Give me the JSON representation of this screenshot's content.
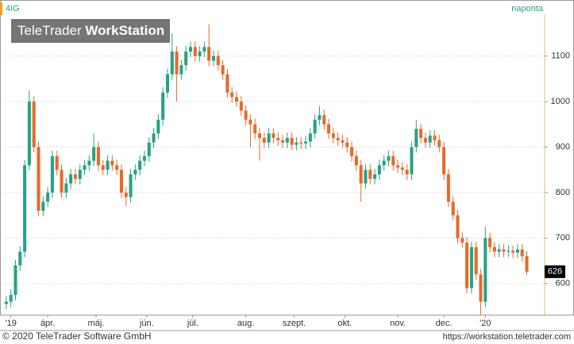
{
  "chart_data": {
    "type": "candlestick",
    "symbol": "4IG",
    "interval": "naponta",
    "logo": {
      "part1": "TeleTrader",
      "part2": "WorkStation"
    },
    "footer_left": "© 2020 TeleTrader Software GmbH",
    "footer_right": "https://workstation.teletrader.com",
    "up_color": "#26a383",
    "down_color": "#e8692a",
    "grid": true,
    "ylim": [
      535,
      1192
    ],
    "yticks": [
      600,
      700,
      800,
      900,
      1000,
      1100
    ],
    "xlim": [
      -0.5,
      116.7
    ],
    "xticks": [
      {
        "value": 1,
        "label": "'19"
      },
      {
        "value": 9,
        "label": "ápr."
      },
      {
        "value": 19.5,
        "label": "máj."
      },
      {
        "value": 30.5,
        "label": "jún."
      },
      {
        "value": 40.5,
        "label": "júl."
      },
      {
        "value": 52,
        "label": "aug."
      },
      {
        "value": 62.5,
        "label": "szept."
      },
      {
        "value": 73.5,
        "label": "okt."
      },
      {
        "value": 85,
        "label": "nov."
      },
      {
        "value": 95,
        "label": "dec."
      },
      {
        "value": 104,
        "label": "'20"
      }
    ],
    "last_value": 626,
    "candles": [
      [
        555,
        572,
        543,
        560
      ],
      [
        560,
        587,
        548,
        575
      ],
      [
        575,
        652,
        563,
        640
      ],
      [
        640,
        682,
        628,
        670
      ],
      [
        670,
        872,
        658,
        860
      ],
      [
        860,
        1025,
        848,
        1000
      ],
      [
        1000,
        1012,
        888,
        900
      ],
      [
        900,
        912,
        748,
        760
      ],
      [
        760,
        792,
        748,
        780
      ],
      [
        780,
        812,
        768,
        800
      ],
      [
        800,
        892,
        788,
        880
      ],
      [
        880,
        892,
        838,
        850
      ],
      [
        850,
        862,
        788,
        800
      ],
      [
        800,
        832,
        788,
        820
      ],
      [
        820,
        852,
        808,
        840
      ],
      [
        840,
        852,
        818,
        830
      ],
      [
        830,
        862,
        818,
        850
      ],
      [
        850,
        872,
        838,
        860
      ],
      [
        860,
        882,
        848,
        870
      ],
      [
        870,
        930,
        858,
        900
      ],
      [
        900,
        912,
        848,
        860
      ],
      [
        860,
        872,
        838,
        850
      ],
      [
        850,
        882,
        838,
        870
      ],
      [
        870,
        882,
        848,
        860
      ],
      [
        860,
        872,
        838,
        850
      ],
      [
        850,
        862,
        788,
        800
      ],
      [
        800,
        812,
        770,
        790
      ],
      [
        790,
        852,
        778,
        840
      ],
      [
        840,
        862,
        828,
        850
      ],
      [
        850,
        882,
        838,
        870
      ],
      [
        870,
        892,
        858,
        880
      ],
      [
        880,
        922,
        868,
        910
      ],
      [
        910,
        942,
        898,
        930
      ],
      [
        930,
        972,
        918,
        960
      ],
      [
        960,
        1032,
        948,
        1020
      ],
      [
        1020,
        1072,
        1008,
        1060
      ],
      [
        1060,
        1150,
        1048,
        1110
      ],
      [
        1110,
        1122,
        1000,
        1060
      ],
      [
        1060,
        1092,
        1048,
        1080
      ],
      [
        1080,
        1122,
        1068,
        1110
      ],
      [
        1110,
        1132,
        1098,
        1120
      ],
      [
        1120,
        1132,
        1088,
        1100
      ],
      [
        1100,
        1122,
        1088,
        1110
      ],
      [
        1110,
        1132,
        1098,
        1120
      ],
      [
        1120,
        1170,
        1078,
        1090
      ],
      [
        1090,
        1112,
        1078,
        1100
      ],
      [
        1100,
        1112,
        1068,
        1080
      ],
      [
        1080,
        1092,
        1048,
        1060
      ],
      [
        1060,
        1072,
        1008,
        1020
      ],
      [
        1020,
        1032,
        998,
        1010
      ],
      [
        1010,
        1022,
        988,
        1000
      ],
      [
        1000,
        1012,
        968,
        980
      ],
      [
        980,
        992,
        948,
        960
      ],
      [
        960,
        972,
        900,
        950
      ],
      [
        950,
        962,
        918,
        930
      ],
      [
        930,
        942,
        870,
        920
      ],
      [
        920,
        932,
        898,
        910
      ],
      [
        910,
        942,
        898,
        930
      ],
      [
        930,
        942,
        908,
        920
      ],
      [
        920,
        932,
        903,
        915
      ],
      [
        915,
        927,
        898,
        910
      ],
      [
        910,
        932,
        898,
        920
      ],
      [
        920,
        932,
        893,
        905
      ],
      [
        905,
        922,
        893,
        910
      ],
      [
        910,
        922,
        896,
        908
      ],
      [
        908,
        924,
        896,
        912
      ],
      [
        912,
        942,
        900,
        930
      ],
      [
        930,
        972,
        918,
        960
      ],
      [
        960,
        990,
        948,
        970
      ],
      [
        970,
        982,
        938,
        950
      ],
      [
        950,
        962,
        918,
        930
      ],
      [
        930,
        942,
        908,
        920
      ],
      [
        920,
        932,
        903,
        915
      ],
      [
        915,
        927,
        898,
        910
      ],
      [
        910,
        922,
        888,
        900
      ],
      [
        900,
        912,
        868,
        880
      ],
      [
        880,
        892,
        848,
        860
      ],
      [
        860,
        872,
        780,
        820
      ],
      [
        820,
        862,
        808,
        850
      ],
      [
        850,
        862,
        818,
        830
      ],
      [
        830,
        852,
        818,
        840
      ],
      [
        840,
        872,
        828,
        860
      ],
      [
        860,
        882,
        848,
        870
      ],
      [
        870,
        892,
        858,
        880
      ],
      [
        880,
        892,
        848,
        860
      ],
      [
        860,
        872,
        843,
        855
      ],
      [
        855,
        867,
        838,
        850
      ],
      [
        850,
        862,
        828,
        840
      ],
      [
        840,
        912,
        828,
        900
      ],
      [
        900,
        960,
        888,
        940
      ],
      [
        940,
        952,
        908,
        920
      ],
      [
        920,
        932,
        898,
        910
      ],
      [
        910,
        937,
        898,
        925
      ],
      [
        925,
        937,
        903,
        915
      ],
      [
        915,
        927,
        888,
        900
      ],
      [
        900,
        912,
        828,
        840
      ],
      [
        840,
        852,
        768,
        780
      ],
      [
        780,
        792,
        738,
        750
      ],
      [
        750,
        762,
        688,
        700
      ],
      [
        700,
        712,
        678,
        690
      ],
      [
        690,
        702,
        578,
        590
      ],
      [
        590,
        692,
        578,
        680
      ],
      [
        680,
        692,
        608,
        620
      ],
      [
        620,
        632,
        530,
        560
      ],
      [
        560,
        725,
        548,
        700
      ],
      [
        700,
        712,
        668,
        680
      ],
      [
        680,
        692,
        658,
        670
      ],
      [
        670,
        687,
        658,
        675
      ],
      [
        675,
        687,
        658,
        670
      ],
      [
        670,
        684,
        658,
        672
      ],
      [
        672,
        684,
        656,
        668
      ],
      [
        668,
        687,
        656,
        675
      ],
      [
        675,
        687,
        648,
        660
      ],
      [
        660,
        672,
        618,
        626
      ]
    ]
  }
}
